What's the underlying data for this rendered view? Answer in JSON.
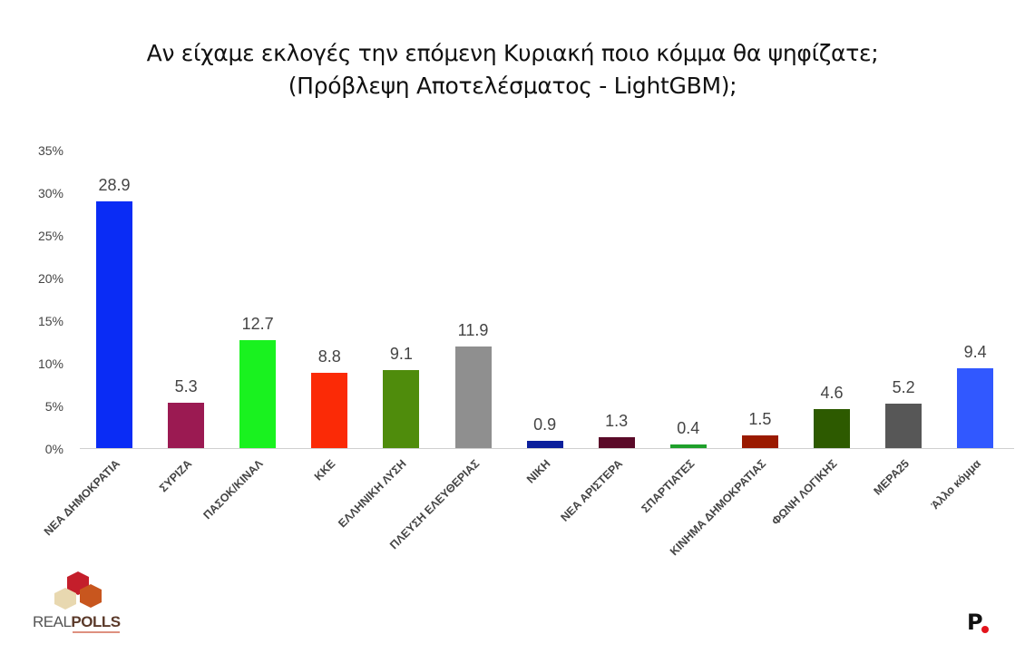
{
  "title": {
    "line1": "Αν είχαμε εκλογές την επόμενη Κυριακή ποιο κόμμα θα ψηφίζατε;",
    "line2": "(Πρόβλεψη Αποτελέσματος - LightGBM);"
  },
  "y_axis": {
    "ticks": [
      "0%",
      "5%",
      "10%",
      "15%",
      "20%",
      "25%",
      "30%",
      "35%"
    ]
  },
  "logos": {
    "left": {
      "text_light": "REAL",
      "text_bold": "POLLS"
    },
    "right": {
      "text": "P"
    }
  },
  "chart_data": {
    "type": "bar",
    "title": "Αν είχαμε εκλογές την επόμενη Κυριακή ποιο κόμμα θα ψηφίζατε; (Πρόβλεψη Αποτελέσματος - LightGBM);",
    "xlabel": "",
    "ylabel": "",
    "ylim": [
      0,
      35
    ],
    "yticks": [
      0,
      5,
      10,
      15,
      20,
      25,
      30,
      35
    ],
    "ytick_format": "%",
    "grid": false,
    "legend": "none",
    "categories": [
      "ΝΕΑ ΔΗΜΟΚΡΑΤΙΑ",
      "ΣΥΡΙΖΑ",
      "ΠΑΣΟΚ/ΚΙΝΑΛ",
      "ΚΚΕ",
      "ΕΛΛΗΝΙΚΗ ΛΥΣΗ",
      "ΠΛΕΥΣΗ ΕΛΕΥΘΕΡΙΑΣ",
      "ΝΙΚΗ",
      "ΝΕΑ ΑΡΙΣΤΕΡΑ",
      "ΣΠΑΡΤΙΑΤΕΣ",
      "ΚΙΝΗΜΑ ΔΗΜΟΚΡΑΤΙΑΣ",
      "ΦΩΝΗ ΛΟΓΙΚΗΣ",
      "ΜΕΡΑ25",
      "Άλλο κόμμα"
    ],
    "values": [
      28.9,
      5.3,
      12.7,
      8.8,
      9.1,
      11.9,
      0.9,
      1.3,
      0.4,
      1.5,
      4.6,
      5.2,
      9.4
    ],
    "labels": [
      "28.9",
      "5.3",
      "12.7",
      "8.8",
      "9.1",
      "11.9",
      "0.9",
      "1.3",
      "0.4",
      "1.5",
      "4.6",
      "5.2",
      "9.4"
    ],
    "colors": [
      "#0a2cf5",
      "#9b1a52",
      "#19f21f",
      "#fb2a06",
      "#4f8c0c",
      "#8f8f8f",
      "#0b1f9c",
      "#5a0a28",
      "#1ea02a",
      "#9a1a00",
      "#2d5a00",
      "#575757",
      "#3158ff"
    ]
  }
}
